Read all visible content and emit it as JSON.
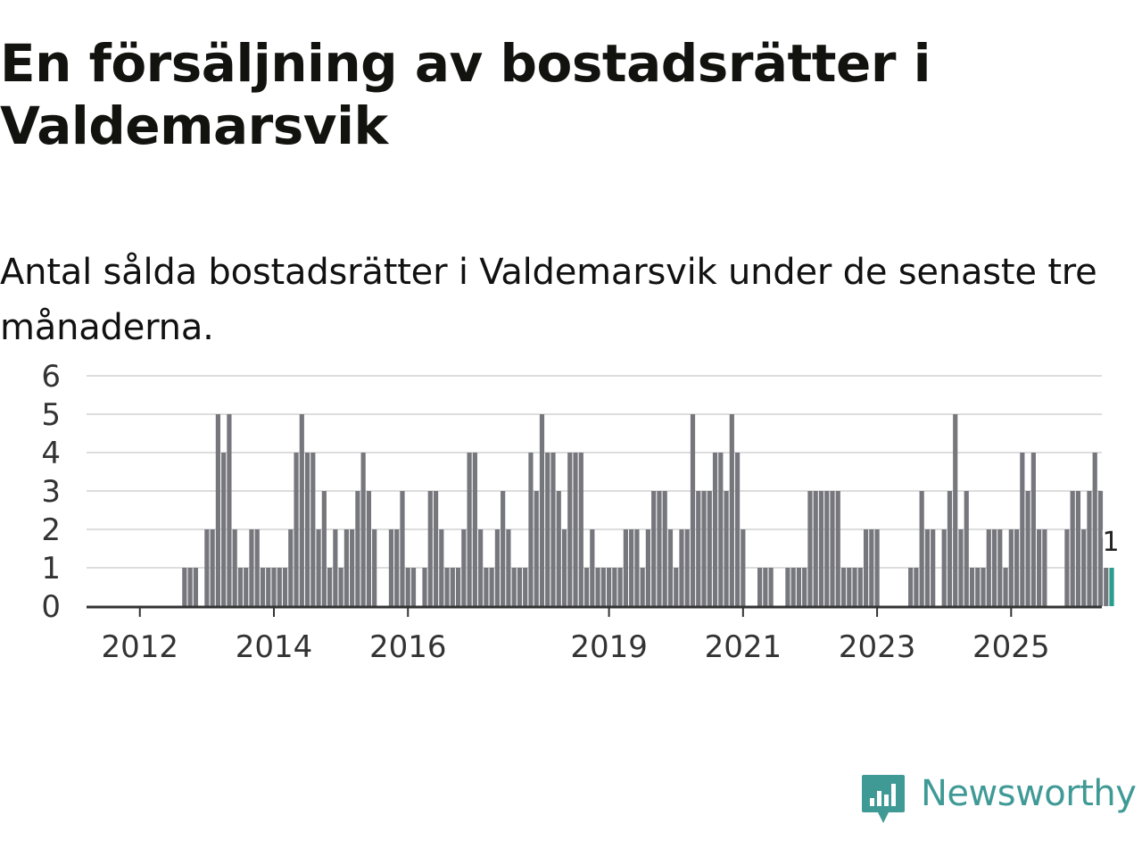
{
  "title": "En försäljning av bostadsrätter i Valdemarsvik",
  "subtitle": "Antal sålda bostadsrätter i Valdemarsvik under de senaste tre månaderna.",
  "brand": {
    "name": "Newsworthy",
    "color": "#3f9a96"
  },
  "colors": {
    "bar": "#76767d",
    "highlight": "#2a9d90",
    "grid": "#dddddd",
    "axis": "#333333"
  },
  "chart_data": {
    "type": "bar",
    "title": "En försäljning av bostadsrätter i Valdemarsvik",
    "xlabel": "",
    "ylabel": "",
    "ylim": [
      0,
      6
    ],
    "yticks": [
      0,
      1,
      2,
      3,
      4,
      5,
      6
    ],
    "grid": true,
    "xticks": [
      {
        "label": "2012",
        "index": 1
      },
      {
        "label": "2014",
        "index": 25
      },
      {
        "label": "2016",
        "index": 49
      },
      {
        "label": "2019",
        "index": 85
      },
      {
        "label": "2021",
        "index": 109
      },
      {
        "label": "2023",
        "index": 133
      },
      {
        "label": "2025",
        "index": 157
      }
    ],
    "highlight_label": "1",
    "values": [
      0,
      0,
      0,
      0,
      0,
      0,
      0,
      0,
      0,
      1,
      1,
      1,
      0,
      2,
      2,
      5,
      4,
      5,
      2,
      1,
      1,
      2,
      2,
      1,
      1,
      1,
      1,
      1,
      2,
      4,
      5,
      4,
      4,
      2,
      3,
      1,
      2,
      1,
      2,
      2,
      3,
      4,
      3,
      2,
      0,
      0,
      2,
      2,
      3,
      1,
      1,
      0,
      1,
      3,
      3,
      2,
      1,
      1,
      1,
      2,
      4,
      4,
      2,
      1,
      1,
      2,
      3,
      2,
      1,
      1,
      1,
      4,
      3,
      5,
      4,
      4,
      3,
      2,
      4,
      4,
      4,
      1,
      2,
      1,
      1,
      1,
      1,
      1,
      2,
      2,
      2,
      1,
      2,
      3,
      3,
      3,
      2,
      1,
      2,
      2,
      5,
      3,
      3,
      3,
      4,
      4,
      3,
      5,
      4,
      2,
      0,
      0,
      1,
      1,
      1,
      0,
      0,
      1,
      1,
      1,
      1,
      3,
      3,
      3,
      3,
      3,
      3,
      1,
      1,
      1,
      1,
      2,
      2,
      2,
      0,
      0,
      0,
      0,
      0,
      1,
      1,
      3,
      2,
      2,
      0,
      2,
      3,
      5,
      2,
      3,
      1,
      1,
      1,
      2,
      2,
      2,
      1,
      2,
      2,
      4,
      3,
      4,
      2,
      2,
      0,
      0,
      0,
      2,
      3,
      3,
      2,
      3,
      4,
      3,
      1,
      1
    ]
  }
}
